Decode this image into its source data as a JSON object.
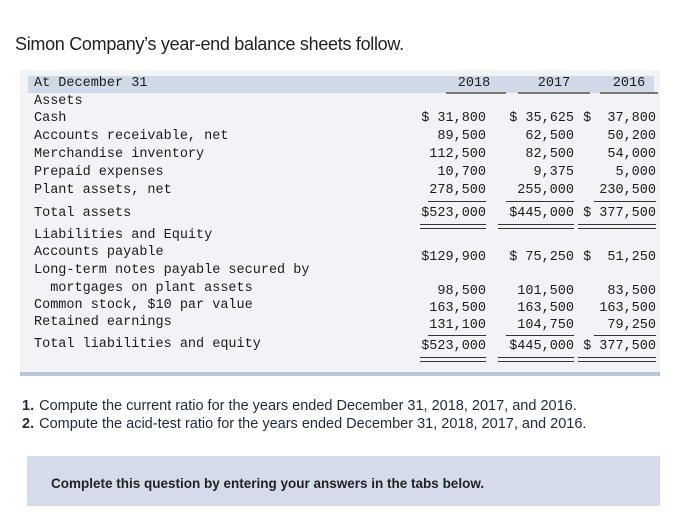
{
  "title": "Simon Company’s year-end balance sheets follow.",
  "sheet": {
    "header": {
      "label": "At December 31",
      "years": [
        "2018",
        "2017",
        "2016"
      ]
    },
    "rows": [
      {
        "label": "Assets"
      },
      {
        "label": "Cash",
        "values": [
          "$ 31,800",
          "$ 35,625",
          "$  37,800"
        ]
      },
      {
        "label": "Accounts receivable, net",
        "values": [
          "89,500",
          "62,500",
          "50,200"
        ]
      },
      {
        "label": "Merchandise inventory",
        "values": [
          "112,500",
          "82,500",
          "54,000"
        ]
      },
      {
        "label": "Prepaid expenses",
        "values": [
          "10,700",
          "9,375",
          "5,000"
        ]
      },
      {
        "label": "Plant assets, net",
        "values": [
          "278,500",
          "255,000",
          "230,500"
        ]
      },
      {
        "label": "Total assets",
        "values": [
          "$523,000",
          "$445,000",
          "$ 377,500"
        ]
      },
      {
        "label": "Liabilities and Equity"
      },
      {
        "label": "Accounts payable",
        "values": [
          "$129,900",
          "$ 75,250",
          "$  51,250"
        ]
      },
      {
        "label": "Long-term notes payable secured by"
      },
      {
        "label": "  mortgages on plant assets",
        "values": [
          "98,500",
          "101,500",
          "83,500"
        ]
      },
      {
        "label": "Common stock, $10 par value",
        "values": [
          "163,500",
          "163,500",
          "163,500"
        ]
      },
      {
        "label": "Retained earnings",
        "values": [
          "131,100",
          "104,750",
          "79,250"
        ]
      },
      {
        "label": "Total liabilities and equity",
        "values": [
          "$523,000",
          "$445,000",
          "$ 377,500"
        ]
      }
    ]
  },
  "questions": [
    {
      "number": "1.",
      "text": "Compute the current ratio for the years ended December 31, 2018, 2017, and 2016."
    },
    {
      "number": "2.",
      "text": "Compute the acid-test ratio for the years ended December 31, 2018, 2017, and 2016."
    }
  ],
  "prompt": "Complete this question by entering your answers in the tabs below."
}
